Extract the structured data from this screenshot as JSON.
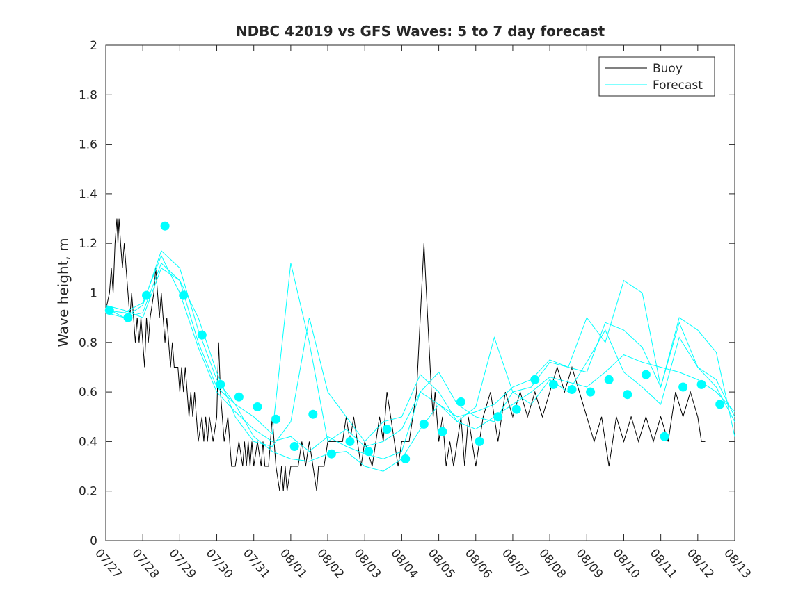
{
  "chart_data": {
    "type": "line",
    "title": "NDBC 42019 vs GFS Waves: 5 to 7 day forecast",
    "xlabel": "",
    "ylabel": "Wave height, m",
    "xlim": [
      0,
      17
    ],
    "ylim": [
      0,
      2
    ],
    "grid": false,
    "legend_position": "top-right",
    "x_tick_labels": [
      "07/27",
      "07/28",
      "07/29",
      "07/30",
      "07/31",
      "08/01",
      "08/02",
      "08/03",
      "08/04",
      "08/05",
      "08/06",
      "08/07",
      "08/08",
      "08/09",
      "08/10",
      "08/11",
      "08/12",
      "08/13"
    ],
    "y_ticks": [
      0,
      0.2,
      0.4,
      0.6,
      0.8,
      1,
      1.2,
      1.4,
      1.6,
      1.8,
      2
    ],
    "y_tick_labels": [
      "0",
      "0.2",
      "0.4",
      "0.6",
      "0.8",
      "1",
      "1.2",
      "1.4",
      "1.6",
      "1.8",
      "2"
    ],
    "colors": {
      "buoy": "#000000",
      "forecast": "#00ffff"
    },
    "series": [
      {
        "name": "Buoy",
        "style": "line",
        "color": "#000000",
        "x": [
          0.0,
          0.1,
          0.15,
          0.2,
          0.25,
          0.3,
          0.33,
          0.36,
          0.4,
          0.45,
          0.5,
          0.55,
          0.6,
          0.65,
          0.7,
          0.75,
          0.8,
          0.85,
          0.9,
          0.95,
          1.0,
          1.05,
          1.1,
          1.15,
          1.2,
          1.3,
          1.35,
          1.4,
          1.45,
          1.5,
          1.55,
          1.6,
          1.65,
          1.7,
          1.75,
          1.8,
          1.85,
          1.9,
          1.95,
          2.0,
          2.05,
          2.1,
          2.15,
          2.2,
          2.25,
          2.3,
          2.35,
          2.4,
          2.5,
          2.6,
          2.65,
          2.7,
          2.75,
          2.8,
          2.9,
          3.0,
          3.05,
          3.1,
          3.2,
          3.3,
          3.35,
          3.4,
          3.5,
          3.6,
          3.7,
          3.75,
          3.8,
          3.85,
          3.9,
          3.95,
          4.0,
          4.1,
          4.2,
          4.25,
          4.3,
          4.35,
          4.4,
          4.5,
          4.6,
          4.7,
          4.75,
          4.8,
          4.85,
          4.9,
          5.0,
          5.1,
          5.2,
          5.3,
          5.4,
          5.5,
          5.6,
          5.7,
          5.75,
          5.8,
          5.9,
          6.0,
          6.2,
          6.4,
          6.5,
          6.6,
          6.7,
          6.8,
          6.9,
          7.0,
          7.2,
          7.4,
          7.5,
          7.6,
          7.7,
          7.8,
          7.9,
          8.0,
          8.2,
          8.4,
          8.5,
          8.6,
          8.7,
          8.8,
          8.85,
          8.9,
          8.95,
          9.0,
          9.1,
          9.2,
          9.3,
          9.4,
          9.5,
          9.6,
          9.7,
          9.8,
          9.9,
          10.0,
          10.2,
          10.4,
          10.6,
          10.8,
          11.0,
          11.2,
          11.4,
          11.6,
          11.8,
          12.0,
          12.2,
          12.4,
          12.6,
          12.8,
          13.0,
          13.2,
          13.4,
          13.6,
          13.8,
          14.0,
          14.2,
          14.4,
          14.6,
          14.8,
          15.0,
          15.2,
          15.4,
          15.6,
          15.8,
          16.0,
          16.1,
          16.2
        ],
        "y": [
          0.93,
          1.0,
          1.1,
          1.0,
          1.2,
          1.3,
          1.2,
          1.3,
          1.2,
          1.1,
          1.2,
          1.1,
          1.0,
          0.9,
          1.0,
          0.9,
          0.8,
          0.9,
          0.8,
          0.9,
          0.8,
          0.7,
          0.9,
          0.8,
          0.9,
          1.0,
          1.1,
          1.0,
          0.9,
          1.0,
          0.9,
          0.8,
          0.9,
          0.8,
          0.7,
          0.8,
          0.7,
          0.7,
          0.7,
          0.6,
          0.7,
          0.6,
          0.7,
          0.6,
          0.5,
          0.6,
          0.5,
          0.6,
          0.4,
          0.5,
          0.4,
          0.5,
          0.4,
          0.5,
          0.4,
          0.5,
          0.8,
          0.6,
          0.4,
          0.5,
          0.4,
          0.3,
          0.3,
          0.4,
          0.3,
          0.4,
          0.3,
          0.4,
          0.3,
          0.4,
          0.3,
          0.4,
          0.3,
          0.4,
          0.3,
          0.3,
          0.3,
          0.5,
          0.3,
          0.2,
          0.3,
          0.2,
          0.3,
          0.2,
          0.3,
          0.3,
          0.3,
          0.4,
          0.3,
          0.4,
          0.3,
          0.2,
          0.3,
          0.3,
          0.3,
          0.4,
          0.4,
          0.4,
          0.5,
          0.4,
          0.5,
          0.4,
          0.3,
          0.4,
          0.3,
          0.5,
          0.4,
          0.6,
          0.5,
          0.4,
          0.3,
          0.4,
          0.4,
          0.6,
          0.9,
          1.2,
          0.9,
          0.6,
          0.5,
          0.6,
          0.5,
          0.4,
          0.5,
          0.3,
          0.4,
          0.3,
          0.4,
          0.5,
          0.3,
          0.5,
          0.4,
          0.3,
          0.5,
          0.6,
          0.4,
          0.6,
          0.5,
          0.6,
          0.5,
          0.6,
          0.5,
          0.6,
          0.7,
          0.6,
          0.7,
          0.6,
          0.5,
          0.4,
          0.5,
          0.3,
          0.5,
          0.4,
          0.5,
          0.4,
          0.5,
          0.4,
          0.5,
          0.4,
          0.6,
          0.5,
          0.6,
          0.5,
          0.4,
          0.4
        ]
      },
      {
        "name": "Forecast",
        "style": "line",
        "color": "#00ffff",
        "x": [
          0.0,
          0.5,
          1.0,
          1.5,
          2.0,
          2.5,
          3.0,
          3.5,
          4.0,
          4.5,
          5.0,
          5.5,
          6.0,
          6.5,
          7.0,
          7.5,
          8.0,
          8.5,
          9.0,
          9.5,
          10.0,
          10.5,
          11.0,
          11.5,
          12.0,
          12.5,
          13.0,
          13.5,
          14.0,
          14.5,
          15.0,
          15.5,
          16.0,
          16.5,
          17.0
        ],
        "y": [
          0.95,
          0.93,
          0.9,
          1.1,
          1.05,
          0.8,
          0.62,
          0.55,
          0.42,
          0.36,
          0.33,
          0.32,
          0.35,
          0.36,
          0.3,
          0.28,
          0.33,
          0.45,
          0.55,
          0.48,
          0.45,
          0.5,
          0.55,
          0.6,
          0.66,
          0.64,
          0.62,
          0.68,
          0.75,
          0.72,
          0.7,
          0.68,
          0.65,
          0.6,
          0.52
        ]
      },
      {
        "style": "line",
        "color": "#00ffff",
        "x": [
          0.0,
          0.5,
          1.0,
          1.5,
          2.0,
          2.5,
          3.0,
          3.5,
          4.0,
          4.5,
          5.0,
          5.5,
          6.0,
          6.5,
          7.0,
          7.5,
          8.0,
          8.5,
          9.0,
          9.5,
          10.0,
          10.5,
          11.0,
          11.5,
          12.0,
          12.5,
          13.0,
          13.5,
          14.0,
          14.5,
          15.0,
          15.5,
          16.0,
          16.5,
          17.0
        ],
        "y": [
          0.93,
          0.92,
          0.96,
          1.15,
          1.0,
          0.78,
          0.6,
          0.52,
          0.45,
          0.4,
          0.42,
          0.36,
          0.42,
          0.38,
          0.35,
          0.33,
          0.36,
          0.6,
          0.68,
          0.55,
          0.5,
          0.48,
          0.6,
          0.62,
          0.72,
          0.7,
          0.68,
          0.88,
          0.85,
          0.78,
          0.62,
          0.88,
          0.7,
          0.62,
          0.48
        ]
      },
      {
        "style": "line",
        "color": "#00ffff",
        "x": [
          0.0,
          0.5,
          1.0,
          1.5,
          2.0,
          2.5,
          3.0,
          3.5,
          4.0,
          4.5,
          5.0,
          5.5,
          6.0,
          6.5,
          7.0,
          7.5,
          8.0,
          8.5,
          9.0,
          9.5,
          10.0,
          10.5,
          11.0,
          11.5,
          12.0,
          12.5,
          13.0,
          13.5,
          14.0,
          14.5,
          15.0,
          15.5,
          16.0,
          16.5,
          17.0
        ],
        "y": [
          0.92,
          0.9,
          0.95,
          1.17,
          1.1,
          0.85,
          0.65,
          0.55,
          0.5,
          0.43,
          1.12,
          0.8,
          0.4,
          0.45,
          0.38,
          0.4,
          0.45,
          0.6,
          0.55,
          0.5,
          0.52,
          0.55,
          0.62,
          0.65,
          0.73,
          0.7,
          0.9,
          0.8,
          1.05,
          1.0,
          0.62,
          0.9,
          0.85,
          0.76,
          0.42
        ]
      },
      {
        "style": "line",
        "color": "#00ffff",
        "x": [
          0.0,
          0.5,
          1.0,
          1.5,
          2.0,
          2.5,
          3.0,
          3.5,
          4.0,
          4.5,
          5.0,
          5.5,
          6.0,
          6.5,
          7.0,
          7.5,
          8.0,
          8.5,
          9.0,
          9.5,
          10.0,
          10.5,
          11.0,
          11.5,
          12.0,
          12.5,
          13.0,
          13.5,
          14.0,
          14.5,
          15.0,
          15.5,
          16.0,
          16.5,
          17.0
        ],
        "y": [
          0.94,
          0.9,
          0.92,
          1.12,
          1.05,
          0.9,
          0.68,
          0.5,
          0.4,
          0.38,
          0.48,
          0.9,
          0.6,
          0.5,
          0.4,
          0.48,
          0.5,
          0.67,
          0.6,
          0.48,
          0.54,
          0.82,
          0.6,
          0.55,
          0.65,
          0.6,
          0.72,
          0.85,
          0.68,
          0.62,
          0.55,
          0.82,
          0.7,
          0.65,
          0.5
        ]
      },
      {
        "name": "",
        "style": "markers",
        "color": "#00ffff",
        "x": [
          0.1,
          0.6,
          1.1,
          1.6,
          2.1,
          2.6,
          3.1,
          3.6,
          4.1,
          4.6,
          5.1,
          5.6,
          6.1,
          6.6,
          7.1,
          7.6,
          8.1,
          8.6,
          9.1,
          9.6,
          10.1,
          10.6,
          11.1,
          11.6,
          12.1,
          12.6,
          13.1,
          13.6,
          14.1,
          14.6,
          15.1,
          15.6,
          16.1,
          16.6
        ],
        "y": [
          0.93,
          0.9,
          0.99,
          1.27,
          0.99,
          0.83,
          0.63,
          0.58,
          0.54,
          0.49,
          0.38,
          0.51,
          0.35,
          0.4,
          0.36,
          0.45,
          0.33,
          0.47,
          0.44,
          0.56,
          0.4,
          0.5,
          0.53,
          0.65,
          0.63,
          0.61,
          0.6,
          0.65,
          0.59,
          0.67,
          0.42,
          0.62,
          0.63,
          0.55
        ]
      }
    ],
    "legend": [
      "Buoy",
      "Forecast"
    ]
  }
}
